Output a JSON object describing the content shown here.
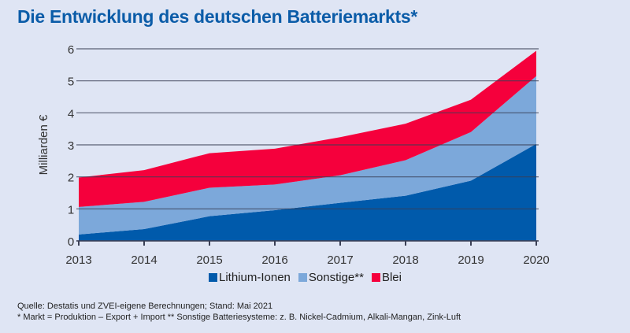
{
  "chart_data": {
    "type": "area",
    "stacked": true,
    "title": "Die Entwicklung des deutschen Batteriemarkts*",
    "xlabel": "",
    "ylabel": "Milliarden €",
    "categories": [
      "2013",
      "2014",
      "2015",
      "2016",
      "2017",
      "2018",
      "2019",
      "2020"
    ],
    "ylim": [
      0,
      6
    ],
    "yticks": [
      "0",
      "1",
      "2",
      "3",
      "4",
      "5",
      "6"
    ],
    "grid": true,
    "legend_position": "bottom",
    "series": [
      {
        "name": "Lithium-Ionen",
        "color": "#005aab",
        "values": [
          0.2,
          0.37,
          0.77,
          0.96,
          1.19,
          1.41,
          1.88,
          3.03
        ]
      },
      {
        "name": "Sonstige**",
        "color": "#7ca8da",
        "values": [
          0.86,
          0.85,
          0.89,
          0.8,
          0.86,
          1.11,
          1.52,
          2.12
        ]
      },
      {
        "name": "Blei",
        "color": "#f5003c",
        "values": [
          0.92,
          0.99,
          1.08,
          1.12,
          1.19,
          1.14,
          1.01,
          0.79
        ]
      }
    ]
  },
  "notes": {
    "source": "Quelle: Destatis und ZVEI-eigene Berechnungen; Stand: Mai 2021",
    "footnote": "* Markt = Produktion – Export + Import  ** Sonstige Batteriesysteme: z. B. Nickel-Cadmium, Alkali-Mangan, Zink-Luft"
  }
}
